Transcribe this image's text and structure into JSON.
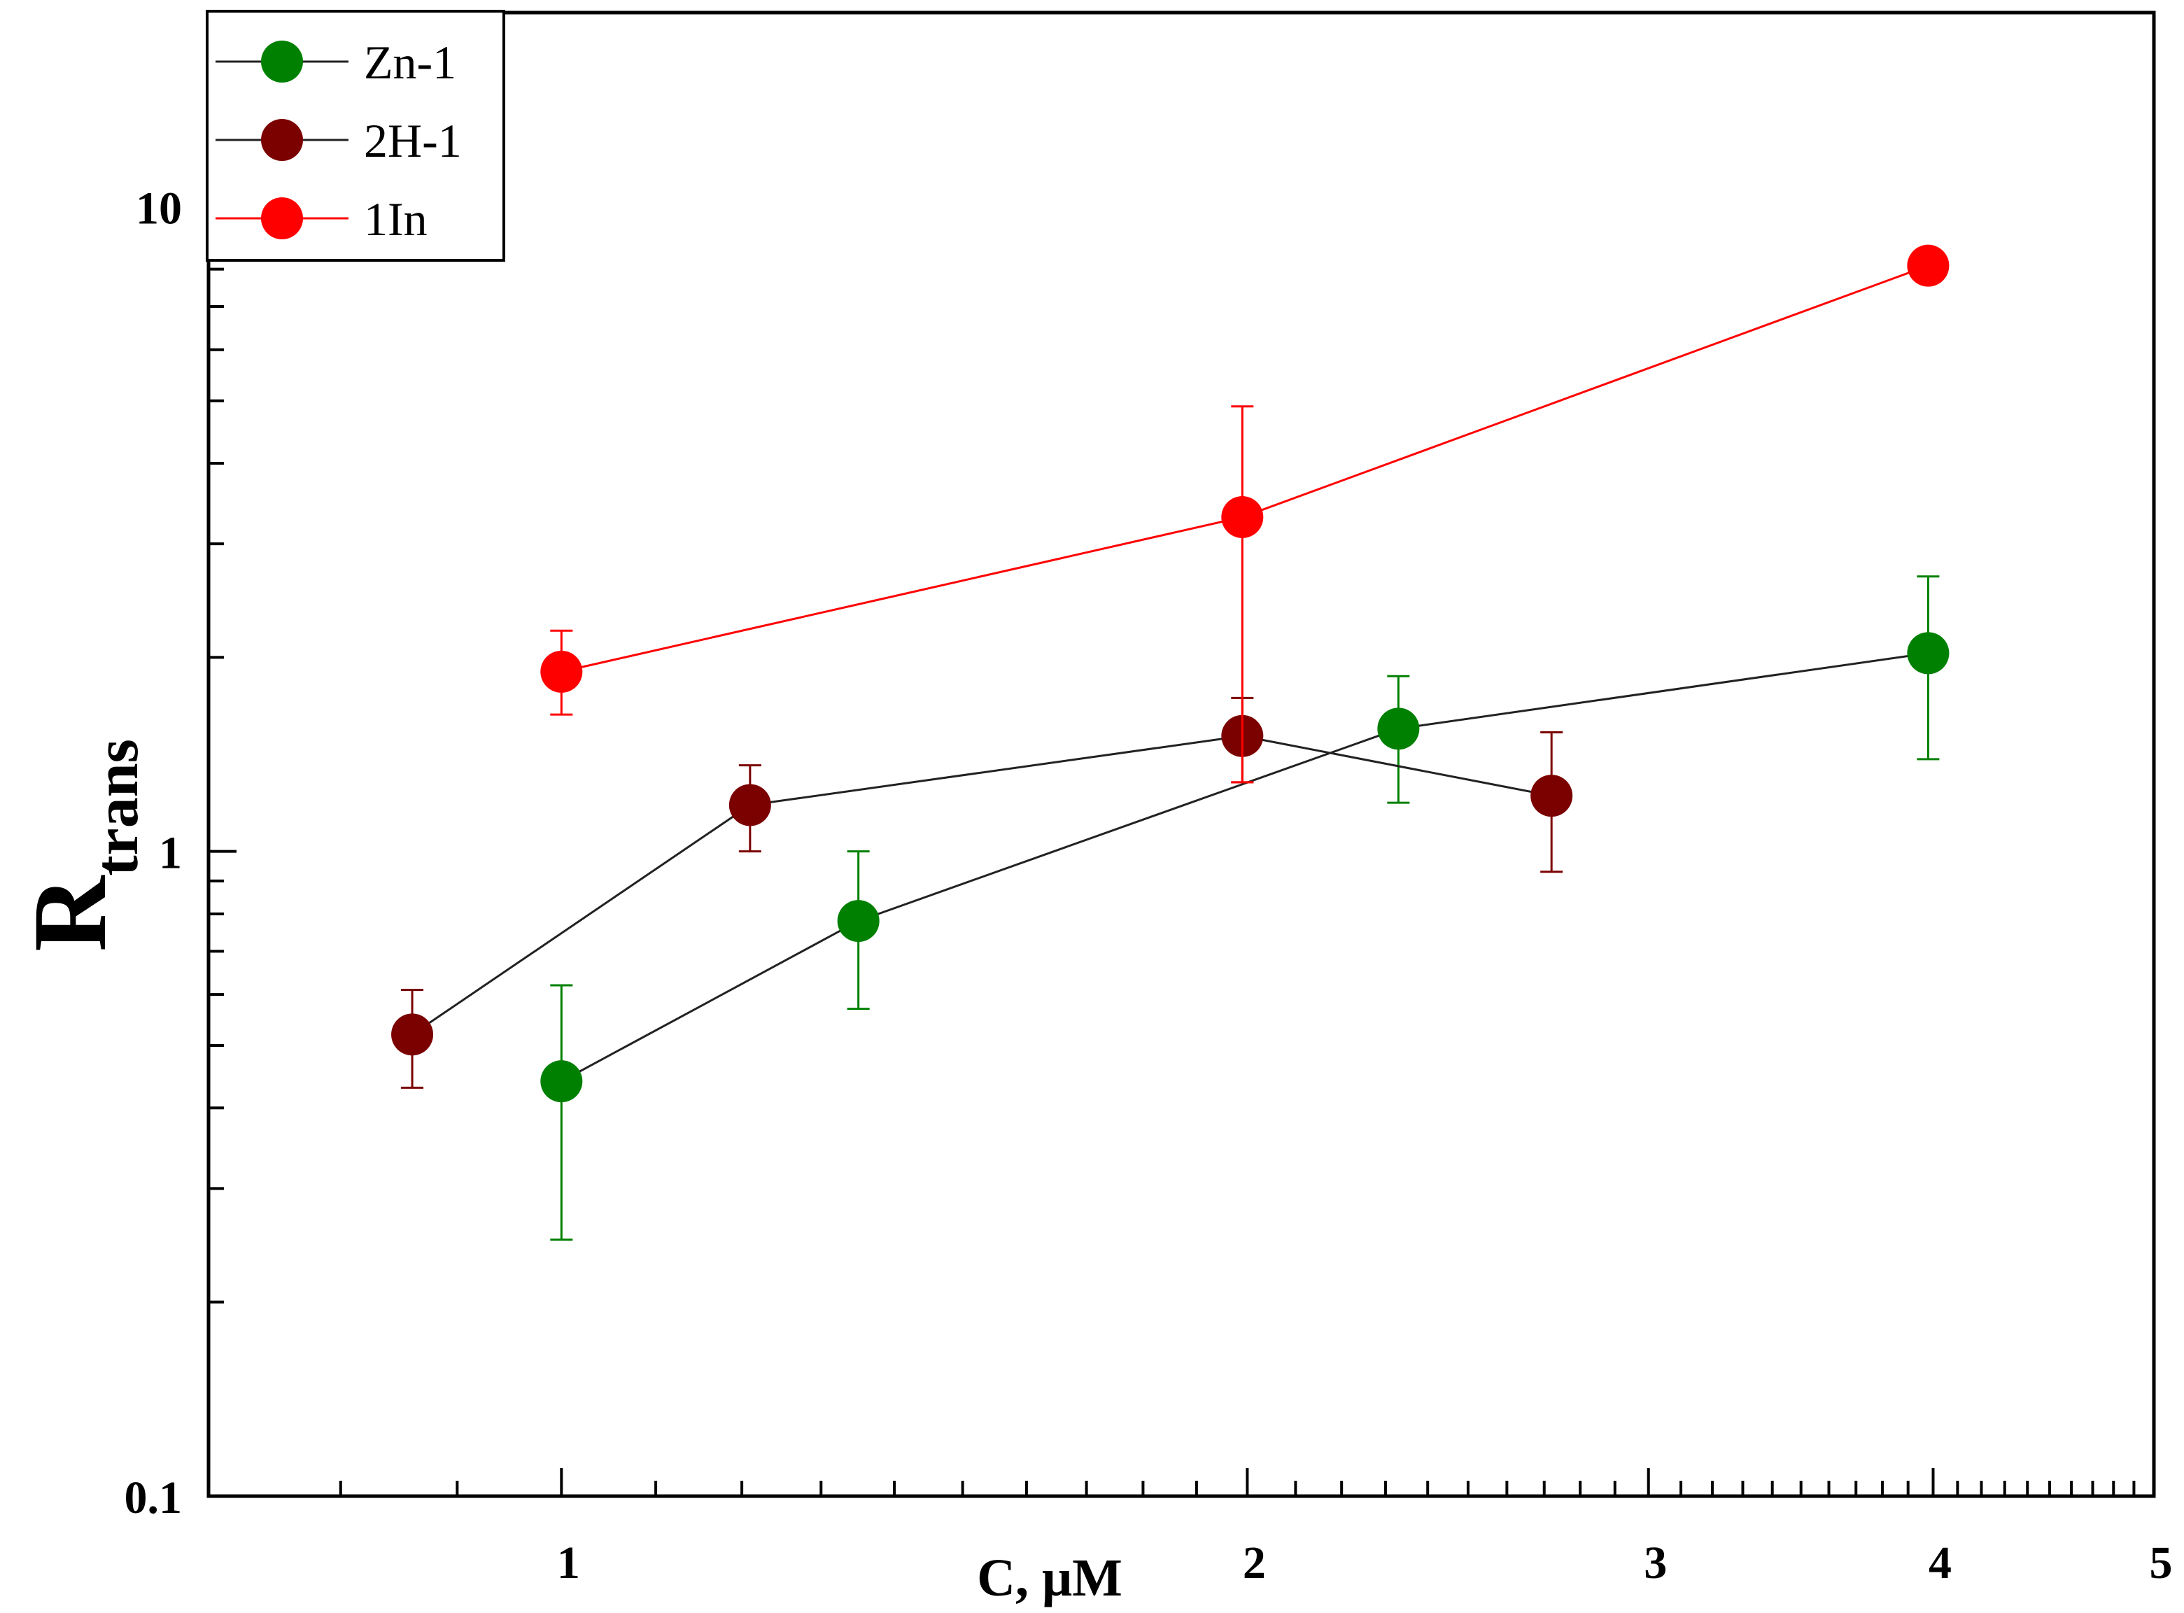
{
  "chart_data": {
    "type": "line",
    "xlabel": "C, μM",
    "ylabel_main": "R",
    "ylabel_sub": "trans",
    "x_scale": "log",
    "y_scale": "log",
    "xlim": [
      0.7,
      5
    ],
    "ylim": [
      0.1,
      20
    ],
    "x_ticks": [
      1,
      2,
      3,
      4,
      5
    ],
    "x_tick_labels": [
      "1",
      "2",
      "3",
      "4",
      "5"
    ],
    "y_ticks": [
      0.1,
      1,
      10
    ],
    "y_tick_labels": [
      "0.1",
      "1",
      "10"
    ],
    "legend_position": "top-left",
    "series": [
      {
        "name": "Zn-1",
        "color": "#008000",
        "line_color": "#222222",
        "points": [
          {
            "x": 1.0,
            "y": 0.44,
            "err_low": 0.25,
            "err_high": 0.62
          },
          {
            "x": 1.35,
            "y": 0.78,
            "err_low": 0.57,
            "err_high": 1.0
          },
          {
            "x": 2.33,
            "y": 1.55,
            "err_low": 1.19,
            "err_high": 1.87
          },
          {
            "x": 3.98,
            "y": 2.03,
            "err_low": 1.39,
            "err_high": 2.67
          }
        ]
      },
      {
        "name": "2H-1",
        "color": "#7b0000",
        "line_color": "#222222",
        "points": [
          {
            "x": 0.86,
            "y": 0.52,
            "err_low": 0.43,
            "err_high": 0.61
          },
          {
            "x": 1.21,
            "y": 1.18,
            "err_low": 1.0,
            "err_high": 1.36
          },
          {
            "x": 1.99,
            "y": 1.51,
            "err_low": 1.28,
            "err_high": 1.73
          },
          {
            "x": 2.72,
            "y": 1.22,
            "err_low": 0.93,
            "err_high": 1.53
          }
        ]
      },
      {
        "name": "1In",
        "color": "#ff0000",
        "line_color": "#ff0000",
        "points": [
          {
            "x": 1.0,
            "y": 1.9,
            "err_low": 1.63,
            "err_high": 2.2
          },
          {
            "x": 1.99,
            "y": 3.3,
            "err_low": 1.28,
            "err_high": 4.9
          },
          {
            "x": 3.98,
            "y": 8.1,
            "err_low": 8.1,
            "err_high": 8.1
          }
        ]
      }
    ]
  }
}
